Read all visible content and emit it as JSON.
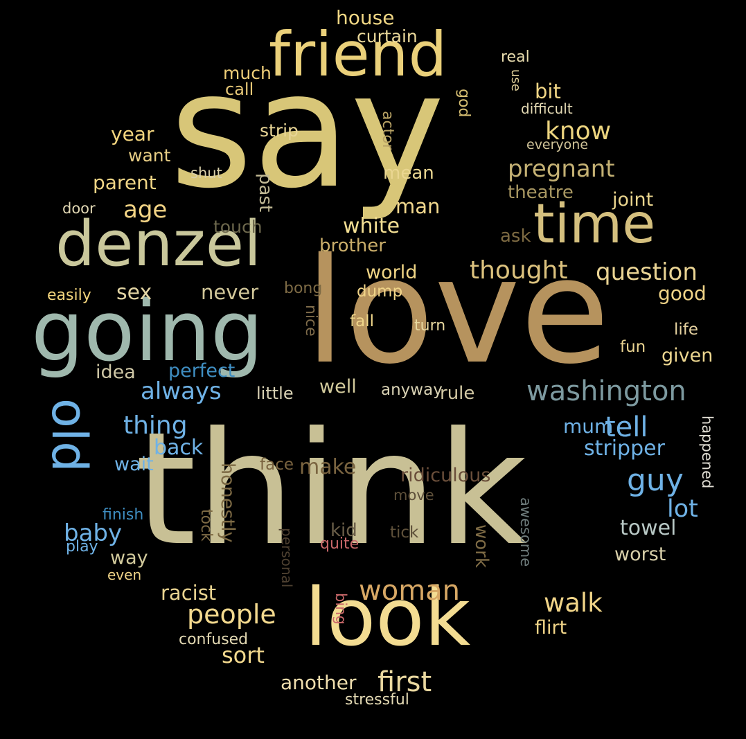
{
  "words": [
    {
      "text": "say",
      "color": "#d8c678"
    },
    {
      "text": "think",
      "color": "#c8c095"
    },
    {
      "text": "love",
      "color": "#b6935e"
    },
    {
      "text": "going",
      "color": "#9fb8ad"
    },
    {
      "text": "friend",
      "color": "#ead07a"
    },
    {
      "text": "denzel",
      "color": "#c9c79b"
    },
    {
      "text": "look",
      "color": "#f3dc92"
    },
    {
      "text": "time",
      "color": "#d4bf7e"
    },
    {
      "text": "old",
      "color": "#6fb2e6"
    },
    {
      "text": "washington",
      "color": "#7d9aa0"
    },
    {
      "text": "house",
      "color": "#f2d885"
    },
    {
      "text": "curtain",
      "color": "#ead89a"
    },
    {
      "text": "real",
      "color": "#e8dcae"
    },
    {
      "text": "use",
      "color": "#e0d09a"
    },
    {
      "text": "god",
      "color": "#d7bf72"
    },
    {
      "text": "much",
      "color": "#f0cf79"
    },
    {
      "text": "call",
      "color": "#e6c777"
    },
    {
      "text": "bit",
      "color": "#f0d585"
    },
    {
      "text": "difficult",
      "color": "#e3d9b3"
    },
    {
      "text": "actor",
      "color": "#b9a365"
    },
    {
      "text": "year",
      "color": "#f3d57f"
    },
    {
      "text": "strip",
      "color": "#e8d596"
    },
    {
      "text": "know",
      "color": "#ecd47f"
    },
    {
      "text": "everyone",
      "color": "#d2c59a"
    },
    {
      "text": "want",
      "color": "#e8ce85"
    },
    {
      "text": "shut",
      "color": "#d9d0aa"
    },
    {
      "text": "mean",
      "color": "#ead691"
    },
    {
      "text": "pregnant",
      "color": "#c4b174"
    },
    {
      "text": "parent",
      "color": "#f0d586"
    },
    {
      "text": "past",
      "color": "#c2ba95"
    },
    {
      "text": "theatre",
      "color": "#a89762"
    },
    {
      "text": "door",
      "color": "#e2d8b4"
    },
    {
      "text": "age",
      "color": "#f3d485"
    },
    {
      "text": "man",
      "color": "#f3d98e"
    },
    {
      "text": "joint",
      "color": "#ead58e"
    },
    {
      "text": "touch",
      "color": "#6d684d"
    },
    {
      "text": "white",
      "color": "#f2de93"
    },
    {
      "text": "ask",
      "color": "#7d6a42"
    },
    {
      "text": "brother",
      "color": "#c9ad6a"
    },
    {
      "text": "thought",
      "color": "#dcc27e"
    },
    {
      "text": "question",
      "color": "#ead494"
    },
    {
      "text": "world",
      "color": "#f0d585"
    },
    {
      "text": "easily",
      "color": "#f3d57d"
    },
    {
      "text": "sex",
      "color": "#e2d4a3"
    },
    {
      "text": "never",
      "color": "#d2c79a"
    },
    {
      "text": "bong",
      "color": "#7e6b45"
    },
    {
      "text": "dump",
      "color": "#f0d488"
    },
    {
      "text": "good",
      "color": "#f0d488"
    },
    {
      "text": "nice",
      "color": "#7e6b4a"
    },
    {
      "text": "fall",
      "color": "#f0d68a"
    },
    {
      "text": "turn",
      "color": "#e8d8a0"
    },
    {
      "text": "life",
      "color": "#e6d2a0"
    },
    {
      "text": "fun",
      "color": "#ead491"
    },
    {
      "text": "given",
      "color": "#ecd690"
    },
    {
      "text": "idea",
      "color": "#cfc7a6"
    },
    {
      "text": "perfect",
      "color": "#3f8ec2"
    },
    {
      "text": "always",
      "color": "#6fb2e6"
    },
    {
      "text": "well",
      "color": "#d2ca9c"
    },
    {
      "text": "little",
      "color": "#d9d2b4"
    },
    {
      "text": "anyway",
      "color": "#d9d2b4"
    },
    {
      "text": "rule",
      "color": "#d3c9a4"
    },
    {
      "text": "thing",
      "color": "#6fb2e6"
    },
    {
      "text": "mum",
      "color": "#6fb2e6"
    },
    {
      "text": "tell",
      "color": "#6fb2e6"
    },
    {
      "text": "happened",
      "color": "#e0ddd3"
    },
    {
      "text": "back",
      "color": "#6fb2e6"
    },
    {
      "text": "stripper",
      "color": "#6fb2e6"
    },
    {
      "text": "wait",
      "color": "#6fb2e6"
    },
    {
      "text": "face",
      "color": "#7a6440"
    },
    {
      "text": "make",
      "color": "#7a6440"
    },
    {
      "text": "ridiculous",
      "color": "#6a4e3a"
    },
    {
      "text": "honestly",
      "color": "#7e6b45"
    },
    {
      "text": "move",
      "color": "#5e503a"
    },
    {
      "text": "guy",
      "color": "#6fb2e6"
    },
    {
      "text": "finish",
      "color": "#3f8ec2"
    },
    {
      "text": "tock",
      "color": "#7e6b45"
    },
    {
      "text": "awesome",
      "color": "#6d7a7a"
    },
    {
      "text": "lot",
      "color": "#6fb2e6"
    },
    {
      "text": "baby",
      "color": "#6fb2e6"
    },
    {
      "text": "kid",
      "color": "#6a5e48"
    },
    {
      "text": "tick",
      "color": "#5e503a"
    },
    {
      "text": "towel",
      "color": "#b8c8c5"
    },
    {
      "text": "play",
      "color": "#6fb2e6"
    },
    {
      "text": "personal",
      "color": "#4e4030"
    },
    {
      "text": "quite",
      "color": "#c9686a"
    },
    {
      "text": "work",
      "color": "#7e6b45"
    },
    {
      "text": "way",
      "color": "#d2ca9c"
    },
    {
      "text": "worst",
      "color": "#d9d0aa"
    },
    {
      "text": "even",
      "color": "#f0d488"
    },
    {
      "text": "racist",
      "color": "#ead491"
    },
    {
      "text": "woman",
      "color": "#d8a865"
    },
    {
      "text": "bing",
      "color": "#c9686a"
    },
    {
      "text": "walk",
      "color": "#f0d488"
    },
    {
      "text": "people",
      "color": "#f3d98e"
    },
    {
      "text": "flirt",
      "color": "#f0d488"
    },
    {
      "text": "confused",
      "color": "#e3d9b3"
    },
    {
      "text": "sort",
      "color": "#f3d98e"
    },
    {
      "text": "first",
      "color": "#ead8a0"
    },
    {
      "text": "another",
      "color": "#f0deae"
    },
    {
      "text": "stressful",
      "color": "#e3d9b3"
    }
  ]
}
